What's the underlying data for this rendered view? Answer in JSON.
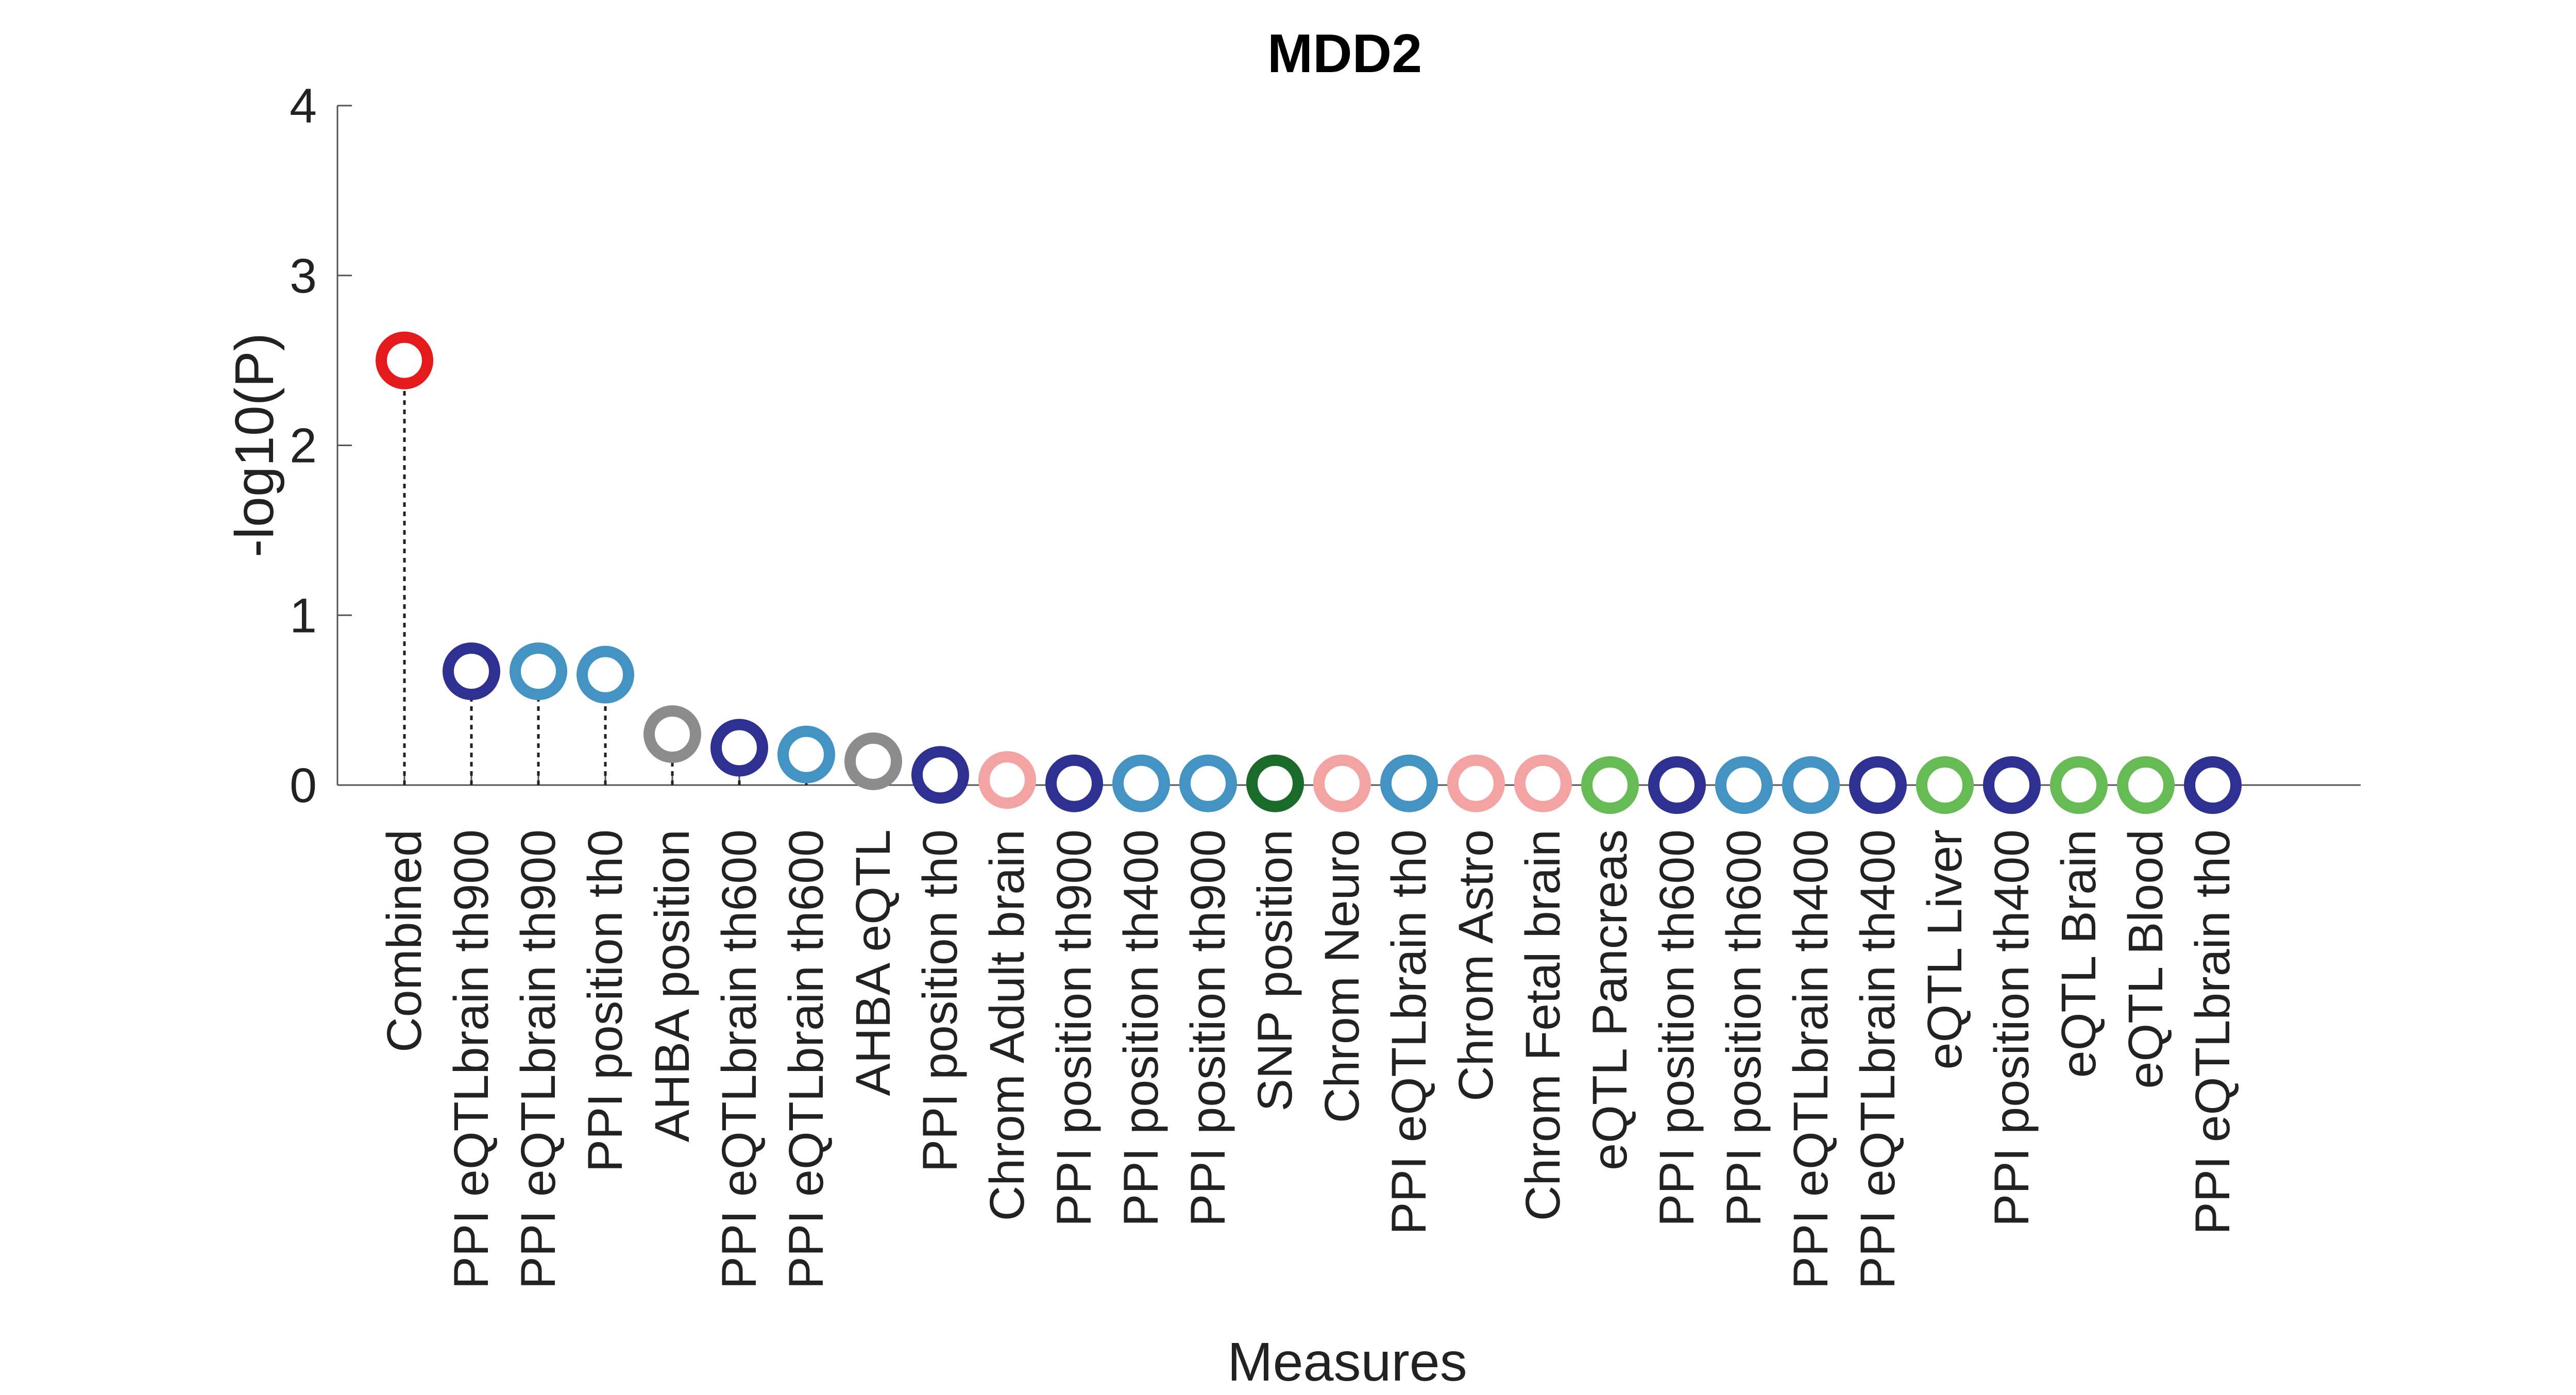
{
  "chart_data": {
    "type": "scatter",
    "title": "MDD2",
    "xlabel": "Measures",
    "ylabel": "-log10(P)",
    "ylim": [
      0,
      4
    ],
    "yticks": [
      "0",
      "1",
      "2",
      "3",
      "4"
    ],
    "grid": false,
    "legend": "none",
    "categories": [
      "Combined",
      "PPI eQTLbrain th900",
      "PPI eQTLbrain th900",
      "PPI position th0",
      "AHBA position",
      "PPI eQTLbrain th600",
      "PPI eQTLbrain th600",
      "AHBA eQTL",
      "PPI position th0",
      "Chrom Adult brain",
      "PPI position th900",
      "PPI position th400",
      "PPI position th900",
      "SNP position",
      "Chrom Neuro",
      "PPI eQTLbrain th0",
      "Chrom Astro",
      "Chrom Fetal brain",
      "eQTL Pancreas",
      "PPI position th600",
      "PPI position th600",
      "PPI eQTLbrain th400",
      "PPI eQTLbrain th400",
      "eQTL Liver",
      "PPI position th400",
      "eQTL Brain",
      "eQTL Blood",
      "PPI eQTLbrain th0"
    ],
    "values": [
      2.5,
      0.67,
      0.67,
      0.65,
      0.3,
      0.22,
      0.18,
      0.14,
      0.06,
      0.03,
      0.01,
      0.01,
      0.01,
      0.01,
      0.01,
      0.01,
      0.01,
      0.01,
      0.0,
      0.0,
      0.0,
      0.0,
      0.0,
      0.0,
      0.0,
      0.0,
      0.0,
      0.0
    ],
    "colors": [
      "#e41a1c",
      "#2e3192",
      "#4393c3",
      "#4393c3",
      "#8c8c8c",
      "#2e3192",
      "#4393c3",
      "#8c8c8c",
      "#2e3192",
      "#f4a3a3",
      "#2e3192",
      "#4393c3",
      "#4393c3",
      "#1a6b2a",
      "#f4a3a3",
      "#4393c3",
      "#f4a3a3",
      "#f4a3a3",
      "#66bb55",
      "#2e3192",
      "#4393c3",
      "#4393c3",
      "#2e3192",
      "#66bb55",
      "#2e3192",
      "#66bb55",
      "#66bb55",
      "#2e3192"
    ]
  }
}
